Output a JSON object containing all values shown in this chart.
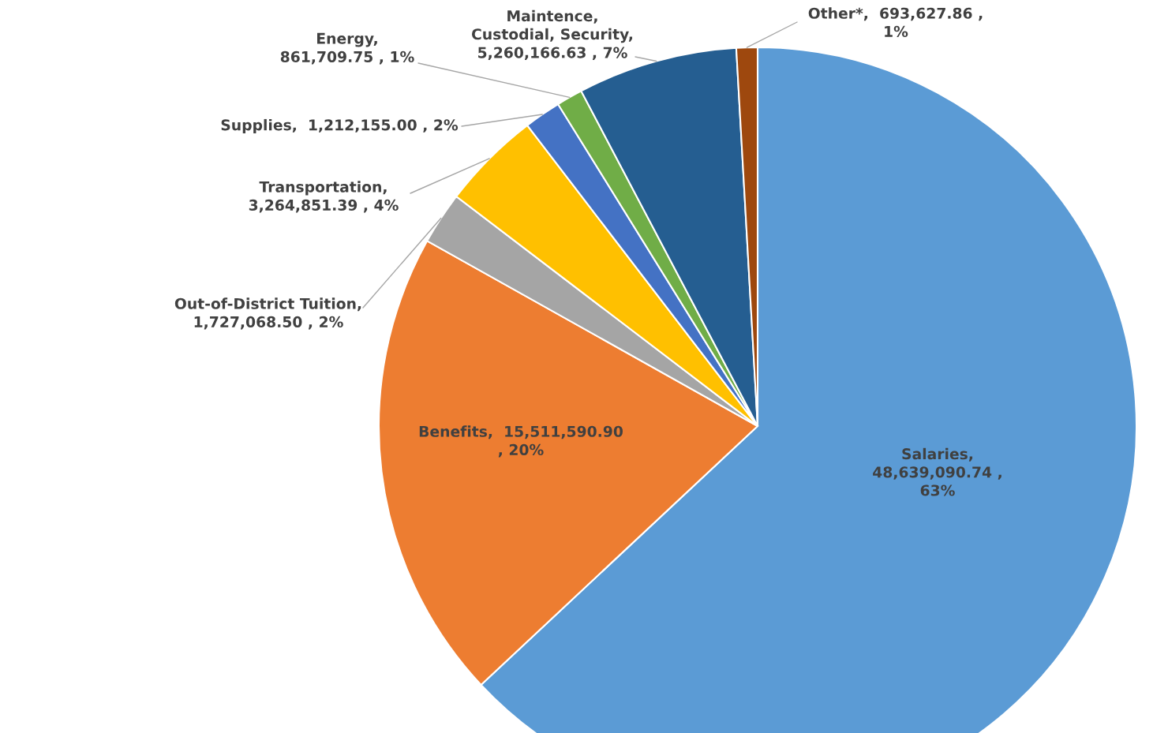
{
  "chart_data": {
    "type": "pie",
    "categories": [
      "Salaries",
      "Benefits",
      "Out-of-District Tuition",
      "Transportation",
      "Supplies",
      "Energy",
      "Maintence,\nCustodial, Security",
      "Other*"
    ],
    "values": [
      48639090.74,
      15511590.9,
      1727068.5,
      3264851.39,
      1212155.0,
      861709.75,
      5260166.63,
      693627.86
    ],
    "colors": [
      "#5b9bd5",
      "#ed7d31",
      "#a5a5a5",
      "#ffc000",
      "#4472c4",
      "#70ad47",
      "#255e91",
      "#9e480e"
    ],
    "value_labels": [
      ",\n48,639,090.74 ,\n63%",
      ",  15,511,590.90\n, 20%",
      ",\n1,727,068.50 , 2%",
      ",\n3,264,851.39 , 4%",
      ",  1,212,155.00 , 2%",
      ",\n861,709.75 , 1%",
      ",\n5,260,166.63 , 7%",
      ",  693,627.86 ,\n1%"
    ]
  }
}
